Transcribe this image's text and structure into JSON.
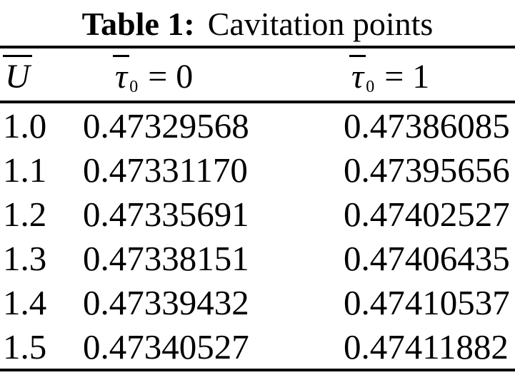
{
  "title": {
    "label": "Table 1:",
    "text": "Cavitation points"
  },
  "table": {
    "header": {
      "col1": {
        "base": "U"
      },
      "col2": {
        "base": "τ",
        "sub": "0",
        "rest": "= 0"
      },
      "col3": {
        "base": "τ",
        "sub": "0",
        "rest": "= 1"
      }
    },
    "rows": [
      {
        "u": "1.0",
        "tau0": "0.47329568",
        "tau1": "0.47386085"
      },
      {
        "u": "1.1",
        "tau0": "0.47331170",
        "tau1": "0.47395656"
      },
      {
        "u": "1.2",
        "tau0": "0.47335691",
        "tau1": "0.47402527"
      },
      {
        "u": "1.3",
        "tau0": "0.47338151",
        "tau1": "0.47406435"
      },
      {
        "u": "1.4",
        "tau0": "0.47339432",
        "tau1": "0.47410537"
      },
      {
        "u": "1.5",
        "tau0": "0.47340527",
        "tau1": "0.47411882"
      }
    ]
  }
}
